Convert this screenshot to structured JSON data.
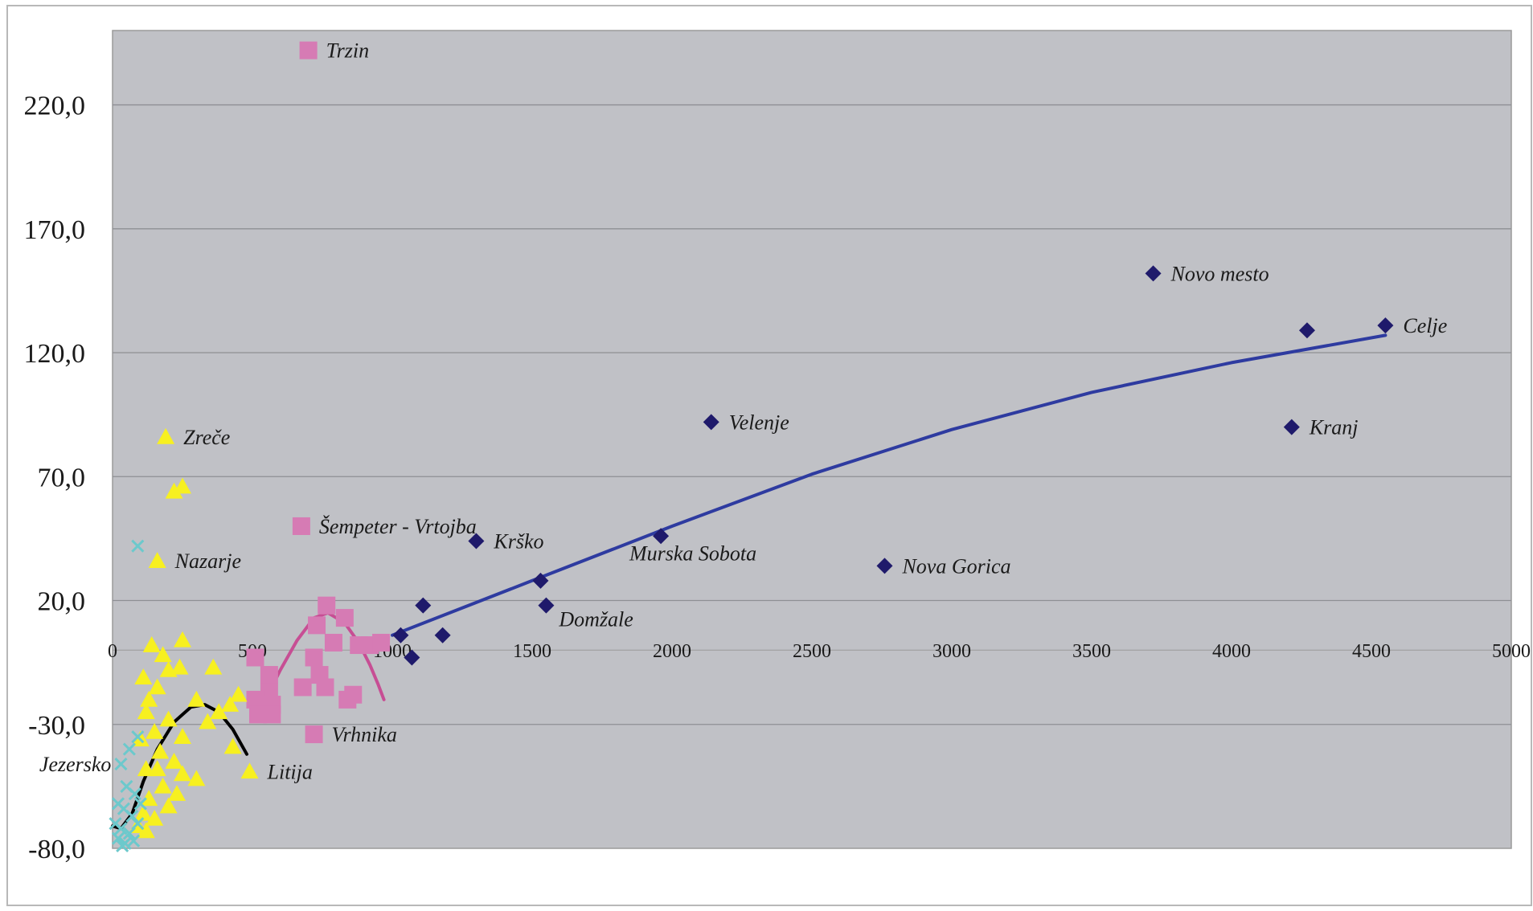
{
  "chart_data": {
    "type": "scatter",
    "xlim": [
      0,
      5000
    ],
    "ylim": [
      -80,
      250
    ],
    "x_ticks": [
      {
        "value": 0,
        "label": "0"
      },
      {
        "value": 500,
        "label": "500"
      },
      {
        "value": 1000,
        "label": "1000"
      },
      {
        "value": 1500,
        "label": "1500"
      },
      {
        "value": 2000,
        "label": "2000"
      },
      {
        "value": 2500,
        "label": "2500"
      },
      {
        "value": 3000,
        "label": "3000"
      },
      {
        "value": 3500,
        "label": "3500"
      },
      {
        "value": 4000,
        "label": "4000"
      },
      {
        "value": 4500,
        "label": "4500"
      },
      {
        "value": 5000,
        "label": "5000"
      }
    ],
    "y_ticks": [
      {
        "value": 220,
        "label": "220,0"
      },
      {
        "value": 170,
        "label": "170,0"
      },
      {
        "value": 120,
        "label": "120,0"
      },
      {
        "value": 70,
        "label": "70,0"
      },
      {
        "value": 20,
        "label": "20,0"
      },
      {
        "value": -30,
        "label": "-30,0"
      },
      {
        "value": -80,
        "label": "-80,0"
      }
    ],
    "grid": "horizontal",
    "plot_background": "#c0c1c6",
    "series": [
      {
        "marker": "diamond",
        "color": "#1f1a6b",
        "points": [
          {
            "x": 3720,
            "y": 152,
            "label": "Novo mesto"
          },
          {
            "x": 4550,
            "y": 131,
            "label": "Celje"
          },
          {
            "x": 4270,
            "y": 129
          },
          {
            "x": 2140,
            "y": 92,
            "label": "Velenje"
          },
          {
            "x": 4215,
            "y": 90,
            "label": "Kranj"
          },
          {
            "x": 1300,
            "y": 44,
            "label": "Krško"
          },
          {
            "x": 1960,
            "y": 46,
            "label": "Murska Sobota"
          },
          {
            "x": 2760,
            "y": 34,
            "label": "Nova Gorica"
          },
          {
            "x": 1530,
            "y": 28
          },
          {
            "x": 1550,
            "y": 18,
            "label": "Domžale"
          },
          {
            "x": 1110,
            "y": 18
          },
          {
            "x": 1180,
            "y": 6
          },
          {
            "x": 1030,
            "y": 6
          },
          {
            "x": 1070,
            "y": -3
          }
        ]
      },
      {
        "marker": "square",
        "color": "#d67bb4",
        "points": [
          {
            "x": 700,
            "y": 242,
            "label": "Trzin"
          },
          {
            "x": 675,
            "y": 50,
            "label": "Šempeter - Vrtojba"
          },
          {
            "x": 765,
            "y": 18
          },
          {
            "x": 830,
            "y": 13
          },
          {
            "x": 730,
            "y": 10
          },
          {
            "x": 790,
            "y": 3
          },
          {
            "x": 880,
            "y": 2
          },
          {
            "x": 920,
            "y": 2
          },
          {
            "x": 960,
            "y": 3
          },
          {
            "x": 510,
            "y": -3
          },
          {
            "x": 560,
            "y": -10
          },
          {
            "x": 720,
            "y": -3
          },
          {
            "x": 740,
            "y": -10
          },
          {
            "x": 760,
            "y": -15
          },
          {
            "x": 680,
            "y": -15
          },
          {
            "x": 560,
            "y": -17
          },
          {
            "x": 510,
            "y": -20
          },
          {
            "x": 570,
            "y": -22
          },
          {
            "x": 520,
            "y": -26
          },
          {
            "x": 570,
            "y": -26
          },
          {
            "x": 860,
            "y": -18
          },
          {
            "x": 840,
            "y": -20
          },
          {
            "x": 720,
            "y": -34,
            "label": "Vrhnika"
          }
        ]
      },
      {
        "marker": "triangle",
        "color": "#f7f020",
        "points": [
          {
            "x": 190,
            "y": 86,
            "label": "Zreče"
          },
          {
            "x": 220,
            "y": 64
          },
          {
            "x": 250,
            "y": 66
          },
          {
            "x": 160,
            "y": 36,
            "label": "Nazarje"
          },
          {
            "x": 490,
            "y": -49,
            "label": "Litija"
          },
          {
            "x": 140,
            "y": 2
          },
          {
            "x": 250,
            "y": 4
          },
          {
            "x": 180,
            "y": -2
          },
          {
            "x": 240,
            "y": -7
          },
          {
            "x": 360,
            "y": -7
          },
          {
            "x": 110,
            "y": -11
          },
          {
            "x": 200,
            "y": -8
          },
          {
            "x": 160,
            "y": -15
          },
          {
            "x": 130,
            "y": -20
          },
          {
            "x": 300,
            "y": -20
          },
          {
            "x": 380,
            "y": -25
          },
          {
            "x": 420,
            "y": -22
          },
          {
            "x": 450,
            "y": -18
          },
          {
            "x": 120,
            "y": -25
          },
          {
            "x": 200,
            "y": -28
          },
          {
            "x": 340,
            "y": -29
          },
          {
            "x": 150,
            "y": -33
          },
          {
            "x": 250,
            "y": -35
          },
          {
            "x": 100,
            "y": -36
          },
          {
            "x": 430,
            "y": -39
          },
          {
            "x": 170,
            "y": -41
          },
          {
            "x": 220,
            "y": -45
          },
          {
            "x": 120,
            "y": -48
          },
          {
            "x": 160,
            "y": -48
          },
          {
            "x": 250,
            "y": -50
          },
          {
            "x": 300,
            "y": -52
          },
          {
            "x": 180,
            "y": -55
          },
          {
            "x": 230,
            "y": -58
          },
          {
            "x": 130,
            "y": -60
          },
          {
            "x": 200,
            "y": -63
          },
          {
            "x": 110,
            "y": -66
          },
          {
            "x": 150,
            "y": -68
          },
          {
            "x": 120,
            "y": -73
          },
          {
            "x": 90,
            "y": -71
          }
        ]
      },
      {
        "marker": "x",
        "color": "#6cc9cc",
        "points": [
          {
            "x": 90,
            "y": 42
          },
          {
            "x": 30,
            "y": -46,
            "label": "Jezersko"
          },
          {
            "x": 60,
            "y": -40
          },
          {
            "x": 90,
            "y": -35
          },
          {
            "x": 50,
            "y": -55
          },
          {
            "x": 80,
            "y": -58
          },
          {
            "x": 20,
            "y": -62
          },
          {
            "x": 40,
            "y": -64
          },
          {
            "x": 70,
            "y": -67
          },
          {
            "x": 100,
            "y": -62
          },
          {
            "x": 10,
            "y": -70
          },
          {
            "x": 30,
            "y": -72
          },
          {
            "x": 60,
            "y": -74
          },
          {
            "x": 90,
            "y": -70
          },
          {
            "x": 20,
            "y": -76
          },
          {
            "x": 45,
            "y": -78
          },
          {
            "x": 75,
            "y": -77
          },
          {
            "x": 35,
            "y": -79
          }
        ]
      }
    ],
    "trendlines": [
      {
        "color": "#2e3ba0",
        "points": [
          [
            1000,
            6
          ],
          [
            1500,
            28
          ],
          [
            2000,
            50
          ],
          [
            2500,
            71
          ],
          [
            3000,
            89
          ],
          [
            3500,
            104
          ],
          [
            4000,
            116
          ],
          [
            4550,
            127
          ]
        ]
      },
      {
        "color": "#c74e94",
        "points": [
          [
            560,
            -17
          ],
          [
            600,
            -8
          ],
          [
            660,
            4
          ],
          [
            720,
            13
          ],
          [
            770,
            15
          ],
          [
            830,
            11
          ],
          [
            880,
            3
          ],
          [
            920,
            -6
          ],
          [
            950,
            -14
          ],
          [
            970,
            -20
          ]
        ]
      },
      {
        "color": "#000000",
        "points": [
          [
            0,
            -71
          ],
          [
            30,
            -72
          ],
          [
            70,
            -66
          ],
          [
            110,
            -53
          ],
          [
            160,
            -40
          ],
          [
            220,
            -29
          ],
          [
            280,
            -23
          ],
          [
            330,
            -22
          ],
          [
            380,
            -25
          ],
          [
            430,
            -32
          ],
          [
            480,
            -42
          ]
        ]
      }
    ]
  }
}
